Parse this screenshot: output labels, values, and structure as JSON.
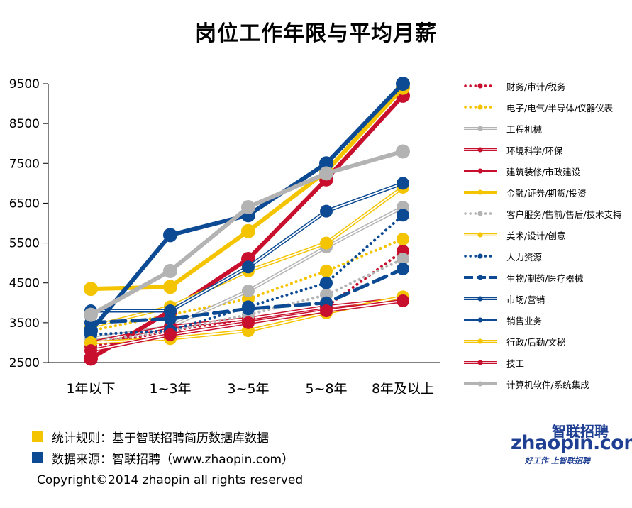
{
  "chart_data": {
    "type": "line",
    "title": "岗位工作年限与平均月薪",
    "categories": [
      "1年以下",
      "1~3年",
      "3~5年",
      "5~8年",
      "8年及以上"
    ],
    "ylim": [
      2500,
      9500
    ],
    "yticks": [
      2500,
      3500,
      4500,
      5500,
      6500,
      7500,
      8500,
      9500
    ],
    "legend_position": "right",
    "series": [
      {
        "name": "财务/审计/税务",
        "color": "#c8102e",
        "style": "dotted",
        "values": [
          2900,
          3300,
          3600,
          3900,
          5300
        ]
      },
      {
        "name": "电子/电气/半导体/仪器仪表",
        "color": "#f4c400",
        "style": "dotted",
        "values": [
          3300,
          3700,
          4100,
          4800,
          5600
        ]
      },
      {
        "name": "工程机械",
        "color": "#b3b3b3",
        "style": "double",
        "values": [
          3100,
          3400,
          4300,
          5400,
          6400
        ]
      },
      {
        "name": "环境科学/环保",
        "color": "#c8102e",
        "style": "double",
        "values": [
          3000,
          3400,
          3600,
          3900,
          4100
        ]
      },
      {
        "name": "建筑装修/市政建设",
        "color": "#c8102e",
        "style": "thick",
        "values": [
          2600,
          3800,
          5100,
          7100,
          9200
        ]
      },
      {
        "name": "金融/证券/期货/投资",
        "color": "#f4c400",
        "style": "thick",
        "values": [
          4350,
          4400,
          5800,
          7300,
          9400
        ]
      },
      {
        "name": "客户服务/售前/售后/技术支持",
        "color": "#b3b3b3",
        "style": "dotted",
        "values": [
          3000,
          3300,
          3700,
          4200,
          5100
        ]
      },
      {
        "name": "美术/设计/创意",
        "color": "#f4c400",
        "style": "double",
        "values": [
          3400,
          3900,
          4800,
          5500,
          6900
        ]
      },
      {
        "name": "人力资源",
        "color": "#0c4a93",
        "style": "dotted",
        "values": [
          3200,
          3300,
          3900,
          4500,
          6200
        ]
      },
      {
        "name": "生物/制药/医疗器械",
        "color": "#0c4a93",
        "style": "dashed",
        "values": [
          3500,
          3600,
          3850,
          4000,
          4850
        ]
      },
      {
        "name": "市场/营销",
        "color": "#0c4a93",
        "style": "double",
        "values": [
          3800,
          3800,
          4900,
          6300,
          7000
        ]
      },
      {
        "name": "销售业务",
        "color": "#0c4a93",
        "style": "thick",
        "values": [
          3300,
          5700,
          6200,
          7500,
          9500
        ]
      },
      {
        "name": "行政/后勤/文秘",
        "color": "#f4c400",
        "style": "double",
        "values": [
          3000,
          3100,
          3300,
          3750,
          4150
        ]
      },
      {
        "name": "技工",
        "color": "#c8102e",
        "style": "double",
        "values": [
          2800,
          3200,
          3500,
          3800,
          4050
        ]
      },
      {
        "name": "计算机软件/系统集成",
        "color": "#b3b3b3",
        "style": "thick",
        "values": [
          3700,
          4800,
          6400,
          7250,
          7800
        ]
      }
    ]
  },
  "notes": [
    {
      "text": "统计规则：基于智联招聘简历数据库数据",
      "color": "#f4c400"
    },
    {
      "text": "数据来源：智联招聘（www.zhaopin.com）",
      "color": "#0c4a93"
    }
  ],
  "copyright": "Copyright©2014 zhaopin all rights reserved",
  "logo": {
    "cn": "智联招聘",
    "en": "zhaopin.com",
    "tagline": "好工作 上智联招聘"
  }
}
